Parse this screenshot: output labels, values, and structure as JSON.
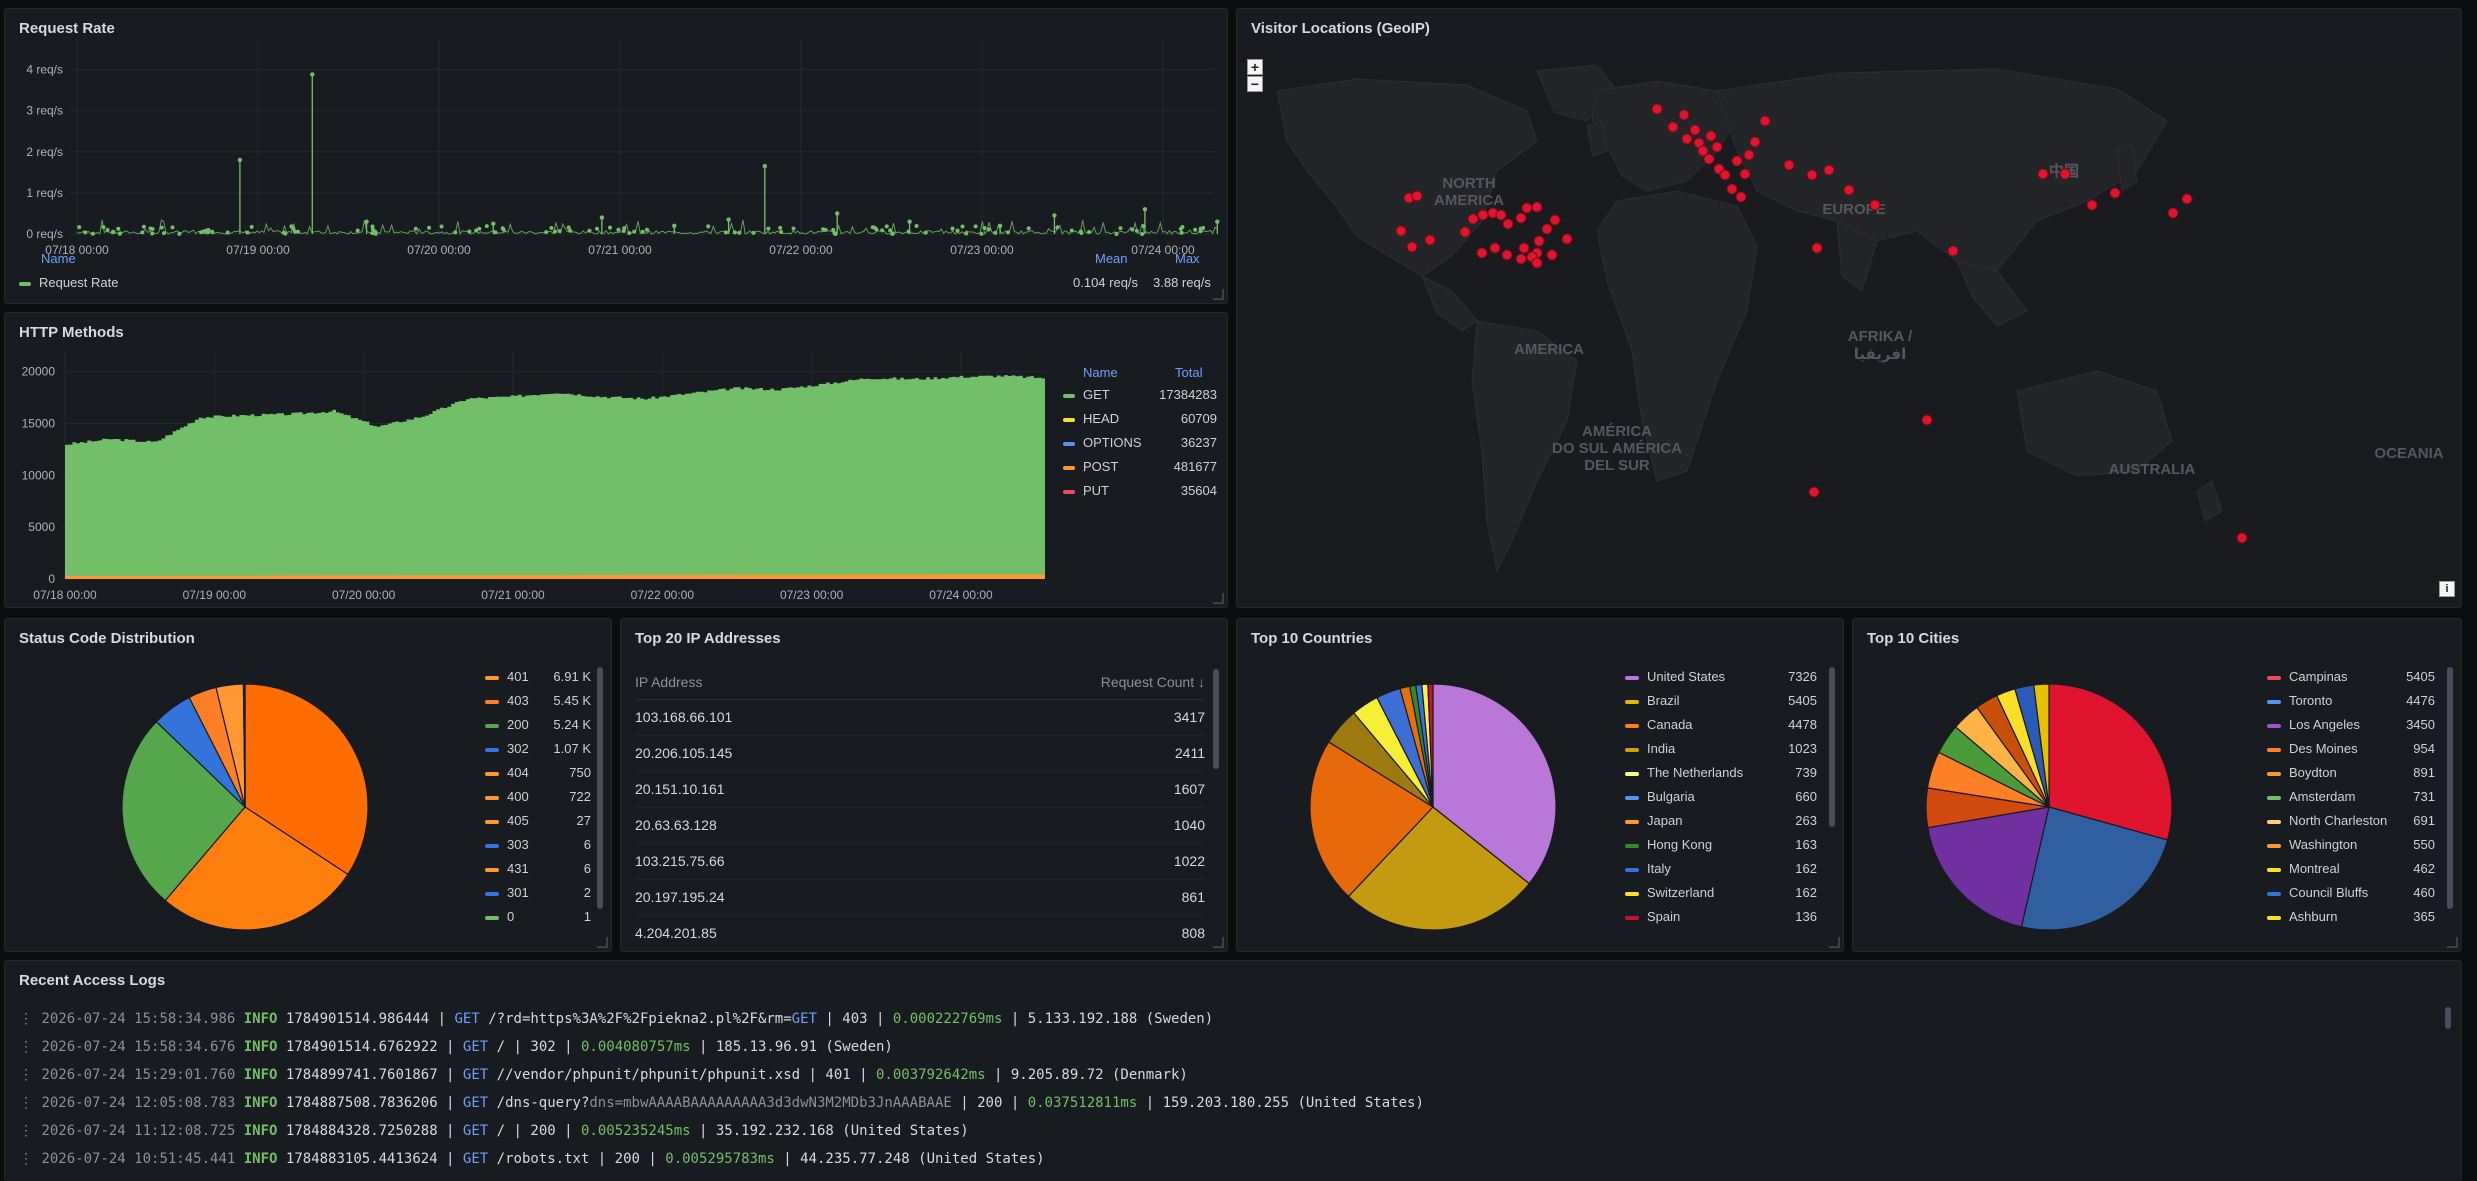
{
  "panels": {
    "request_rate": {
      "title": "Request Rate",
      "legend_headers": {
        "name": "Name",
        "mean": "Mean",
        "max": "Max"
      },
      "legend": {
        "name": "Request Rate",
        "mean": "0.104 req/s",
        "max": "3.88 req/s",
        "color": "#73bf69"
      }
    },
    "http_methods": {
      "title": "HTTP Methods",
      "legend_headers": {
        "name": "Name",
        "total": "Total"
      },
      "legend": [
        {
          "name": "GET",
          "total": "17384283",
          "color": "#73bf69"
        },
        {
          "name": "HEAD",
          "total": "60709",
          "color": "#fade2a"
        },
        {
          "name": "OPTIONS",
          "total": "36237",
          "color": "#5794f2"
        },
        {
          "name": "POST",
          "total": "481677",
          "color": "#ff9830"
        },
        {
          "name": "PUT",
          "total": "35604",
          "color": "#f2495c"
        }
      ]
    },
    "geo": {
      "title": "Visitor Locations (GeoIP)",
      "zoom_in": "+",
      "zoom_out": "−",
      "info": "i",
      "labels": {
        "north_america": [
          "NORTH",
          "AMERICA"
        ],
        "europe": "EUROPE",
        "america": "AMERICA",
        "afrika": [
          "AFRIKA /",
          "افريقيا"
        ],
        "south_america": [
          "AMÉRICA",
          "DO SUL AMÉRICA",
          "DEL SUR"
        ],
        "australia": "AUSTRALIA",
        "oceania": "OCEANIA",
        "china": "中国"
      }
    },
    "status": {
      "title": "Status Code Distribution",
      "legend": [
        {
          "code": "401",
          "value": "6.91 K",
          "color": "#ff9830"
        },
        {
          "code": "403",
          "value": "5.45 K",
          "color": "#ff7f27"
        },
        {
          "code": "200",
          "value": "5.24 K",
          "color": "#56a64b"
        },
        {
          "code": "302",
          "value": "1.07 K",
          "color": "#3274d9"
        },
        {
          "code": "404",
          "value": "750",
          "color": "#ff9830"
        },
        {
          "code": "400",
          "value": "722",
          "color": "#ff9830"
        },
        {
          "code": "405",
          "value": "27",
          "color": "#ff9830"
        },
        {
          "code": "303",
          "value": "6",
          "color": "#3274d9"
        },
        {
          "code": "431",
          "value": "6",
          "color": "#ff9830"
        },
        {
          "code": "301",
          "value": "2",
          "color": "#3274d9"
        },
        {
          "code": "0",
          "value": "1",
          "color": "#73bf69"
        }
      ]
    },
    "ips": {
      "title": "Top 20 IP Addresses",
      "headers": {
        "ip": "IP Address",
        "count": "Request Count ↓"
      },
      "rows": [
        {
          "ip": "103.168.66.101",
          "count": "3417"
        },
        {
          "ip": "20.206.105.145",
          "count": "2411"
        },
        {
          "ip": "20.151.10.161",
          "count": "1607"
        },
        {
          "ip": "20.63.63.128",
          "count": "1040"
        },
        {
          "ip": "103.215.75.66",
          "count": "1022"
        },
        {
          "ip": "20.197.195.24",
          "count": "861"
        },
        {
          "ip": "4.204.201.85",
          "count": "808"
        }
      ]
    },
    "countries": {
      "title": "Top 10 Countries",
      "legend": [
        {
          "name": "United States",
          "value": "7326",
          "color": "#b877d9"
        },
        {
          "name": "Brazil",
          "value": "5405",
          "color": "#e0b400"
        },
        {
          "name": "Canada",
          "value": "4478",
          "color": "#ff7f0e"
        },
        {
          "name": "India",
          "value": "1023",
          "color": "#cca300"
        },
        {
          "name": "The Netherlands",
          "value": "739",
          "color": "#fff899"
        },
        {
          "name": "Bulgaria",
          "value": "660",
          "color": "#5794f2"
        },
        {
          "name": "Japan",
          "value": "263",
          "color": "#ff9830"
        },
        {
          "name": "Hong Kong",
          "value": "163",
          "color": "#37872d"
        },
        {
          "name": "Italy",
          "value": "162",
          "color": "#3274d9"
        },
        {
          "name": "Switzerland",
          "value": "162",
          "color": "#fade2a"
        },
        {
          "name": "Spain",
          "value": "136",
          "color": "#c4162a"
        }
      ]
    },
    "cities": {
      "title": "Top 10 Cities",
      "legend": [
        {
          "name": "Campinas",
          "value": "5405",
          "color": "#f2495c"
        },
        {
          "name": "Toronto",
          "value": "4476",
          "color": "#5794f2"
        },
        {
          "name": "Los Angeles",
          "value": "3450",
          "color": "#a352cc"
        },
        {
          "name": "Des Moines",
          "value": "954",
          "color": "#ff7f27"
        },
        {
          "name": "Boydton",
          "value": "891",
          "color": "#ff9830"
        },
        {
          "name": "Amsterdam",
          "value": "731",
          "color": "#73bf69"
        },
        {
          "name": "North Charleston",
          "value": "691",
          "color": "#ffcb7d"
        },
        {
          "name": "Washington",
          "value": "550",
          "color": "#ff9830"
        },
        {
          "name": "Montreal",
          "value": "462",
          "color": "#fade2a"
        },
        {
          "name": "Council Bluffs",
          "value": "460",
          "color": "#3274d9"
        },
        {
          "name": "Ashburn",
          "value": "365",
          "color": "#fade2a"
        }
      ]
    },
    "logs": {
      "title": "Recent Access Logs",
      "lines": [
        {
          "ts": "2026-07-24 15:58:34.986",
          "level": "INFO",
          "id": "1784901514.986444",
          "method": "GET",
          "path": "/?rd=https%3A%2F%2Fpiekna2.pl%2F&rm=",
          "path_tail": "GET",
          "status": "403",
          "dur": "0.000222769ms",
          "client": "5.133.192.188 (Sweden)"
        },
        {
          "ts": "2026-07-24 15:58:34.676",
          "level": "INFO",
          "id": "1784901514.6762922",
          "method": "GET",
          "path": "/",
          "path_tail": "",
          "status": "302",
          "dur": "0.004080757ms",
          "client": "185.13.96.91 (Sweden)"
        },
        {
          "ts": "2026-07-24 15:29:01.760",
          "level": "INFO",
          "id": "1784899741.7601867",
          "method": "GET",
          "path": "//vendor/phpunit/phpunit/phpunit.xsd",
          "path_tail": "",
          "status": "401",
          "dur": "0.003792642ms",
          "client": "9.205.89.72 (Denmark)"
        },
        {
          "ts": "2026-07-24 12:05:08.783",
          "level": "INFO",
          "id": "1784887508.7836206",
          "method": "GET",
          "path": "/dns-query?",
          "path_tail": "dns=mbwAAAABAAAAAAAAA3d3dwN3M2MDb3JnAAABAAE",
          "status": "200",
          "dur": "0.037512811ms",
          "client": "159.203.180.255 (United States)"
        },
        {
          "ts": "2026-07-24 11:12:08.725",
          "level": "INFO",
          "id": "1784884328.7250288",
          "method": "GET",
          "path": "/",
          "path_tail": "",
          "status": "200",
          "dur": "0.005235245ms",
          "client": "35.192.232.168 (United States)"
        },
        {
          "ts": "2026-07-24 10:51:45.441",
          "level": "INFO",
          "id": "1784883105.4413624",
          "method": "GET",
          "path": "/robots.txt",
          "path_tail": "",
          "status": "200",
          "dur": "0.005295783ms",
          "client": "44.235.77.248 (United States)"
        }
      ]
    }
  },
  "chart_data": [
    {
      "type": "scatter",
      "title": "Request Rate",
      "x_ticks": [
        "07/18 00:00",
        "07/19 00:00",
        "07/20 00:00",
        "07/21 00:00",
        "07/22 00:00",
        "07/23 00:00",
        "07/24 00:00"
      ],
      "y_ticks": [
        "0 req/s",
        "1 req/s",
        "2 req/s",
        "3 req/s",
        "4 req/s"
      ],
      "ylim": [
        0,
        4.5
      ],
      "series": [
        {
          "name": "Request Rate",
          "color": "#73bf69",
          "points": [
            [
              0.2,
              0.05
            ],
            [
              0.9,
              1.8
            ],
            [
              1.3,
              3.88
            ],
            [
              1.6,
              0.3
            ],
            [
              2.3,
              0.25
            ],
            [
              2.9,
              0.4
            ],
            [
              3.3,
              0.2
            ],
            [
              3.6,
              0.35
            ],
            [
              3.8,
              1.65
            ],
            [
              4.2,
              0.5
            ],
            [
              4.6,
              0.3
            ],
            [
              5.1,
              0.2
            ],
            [
              5.4,
              0.45
            ],
            [
              5.9,
              0.6
            ],
            [
              6.3,
              0.3
            ],
            [
              6.5,
              0.5
            ],
            [
              6.9,
              0.1
            ],
            [
              7.2,
              0.05
            ]
          ]
        }
      ]
    },
    {
      "type": "area",
      "title": "HTTP Methods",
      "x_ticks": [
        "07/18 00:00",
        "07/19 00:00",
        "07/20 00:00",
        "07/21 00:00",
        "07/22 00:00",
        "07/23 00:00",
        "07/24 00:00"
      ],
      "y_ticks": [
        "0",
        "5000",
        "10000",
        "15000",
        "20000"
      ],
      "ylim": [
        0,
        22000
      ],
      "series": [
        {
          "name": "GET",
          "color": "#73bf69",
          "values": [
            13000,
            13500,
            13200,
            15600,
            15800,
            15900,
            16200,
            14700,
            15700,
            17400,
            17600,
            18000,
            17600,
            17400,
            17900,
            18400,
            18300,
            18800,
            19400,
            19300,
            19500,
            19600,
            19400
          ]
        },
        {
          "name": "POST",
          "color": "#ff9830",
          "values": [
            300,
            300,
            300,
            320,
            330,
            340,
            350,
            350,
            360,
            370,
            380,
            380,
            390,
            400,
            400,
            410,
            420,
            420,
            430,
            430,
            440,
            440,
            440
          ]
        }
      ]
    },
    {
      "type": "pie",
      "title": "Status Code Distribution",
      "labels": [
        "401",
        "403",
        "200",
        "302",
        "404",
        "400",
        "405",
        "303",
        "431",
        "301",
        "0"
      ],
      "values": [
        6910,
        5450,
        5240,
        1070,
        750,
        722,
        27,
        6,
        6,
        2,
        1
      ]
    },
    {
      "type": "pie",
      "title": "Top 10 Countries",
      "labels": [
        "United States",
        "Brazil",
        "Canada",
        "India",
        "The Netherlands",
        "Bulgaria",
        "Japan",
        "Hong Kong",
        "Italy",
        "Switzerland",
        "Spain"
      ],
      "values": [
        7326,
        5405,
        4478,
        1023,
        739,
        660,
        263,
        163,
        162,
        162,
        136
      ]
    },
    {
      "type": "pie",
      "title": "Top 10 Cities",
      "labels": [
        "Campinas",
        "Toronto",
        "Los Angeles",
        "Des Moines",
        "Boydton",
        "Amsterdam",
        "North Charleston",
        "Washington",
        "Montreal",
        "Council Bluffs",
        "Ashburn"
      ],
      "values": [
        5405,
        4476,
        3450,
        954,
        891,
        731,
        691,
        550,
        462,
        460,
        365
      ]
    }
  ]
}
